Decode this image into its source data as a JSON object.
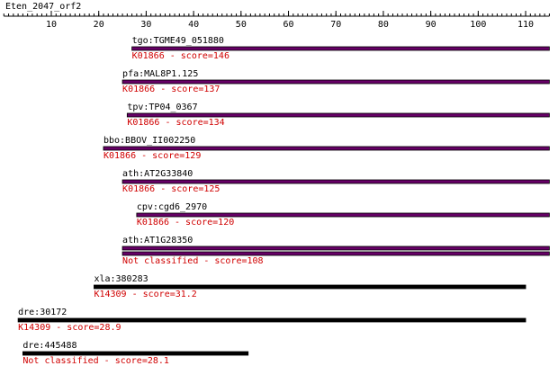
{
  "chart_data": {
    "type": "alignment",
    "title": "Eten_2047_orf2",
    "xlim": [
      0,
      115
    ],
    "xticks": [
      10,
      20,
      30,
      40,
      50,
      60,
      70,
      80,
      90,
      100,
      110
    ],
    "tracks": [
      {
        "label": "tgo:TGME49_051880",
        "annotation": "K01866 - score=146",
        "color": "#660066",
        "bars": [
          {
            "start": 27,
            "end": 115
          }
        ]
      },
      {
        "label": "pfa:MAL8P1.125",
        "annotation": "K01866 - score=137",
        "color": "#660066",
        "bars": [
          {
            "start": 25,
            "end": 115
          }
        ]
      },
      {
        "label": "tpv:TP04_0367",
        "annotation": "K01866 - score=134",
        "color": "#660066",
        "bars": [
          {
            "start": 26,
            "end": 115
          }
        ]
      },
      {
        "label": "bbo:BBOV_II002250",
        "annotation": "K01866 - score=129",
        "color": "#660066",
        "bars": [
          {
            "start": 21,
            "end": 115
          }
        ]
      },
      {
        "label": "ath:AT2G33840",
        "annotation": "K01866 - score=125",
        "color": "#660066",
        "bars": [
          {
            "start": 25,
            "end": 115
          }
        ]
      },
      {
        "label": "cpv:cgd6_2970",
        "annotation": "K01866 - score=120",
        "color": "#660066",
        "bars": [
          {
            "start": 28,
            "end": 115
          }
        ]
      },
      {
        "label": "ath:AT1G28350",
        "annotation": "Not classified - score=108",
        "color": "#660066",
        "bars": [
          {
            "start": 25,
            "end": 115
          },
          {
            "start": 25,
            "end": 115
          }
        ]
      },
      {
        "label": "xla:380283",
        "annotation": "K14309 - score=31.2",
        "color": "#000000",
        "bars": [
          {
            "start": 19,
            "end": 110
          }
        ]
      },
      {
        "label": "dre:30172",
        "annotation": "K14309 - score=28.9",
        "color": "#000000",
        "bars": [
          {
            "start": 3,
            "end": 110
          }
        ]
      },
      {
        "label": "dre:445488",
        "annotation": "Not classified - score=28.1",
        "color": "#000000",
        "bars": [
          {
            "start": 4,
            "end": 51.5
          }
        ]
      }
    ]
  }
}
